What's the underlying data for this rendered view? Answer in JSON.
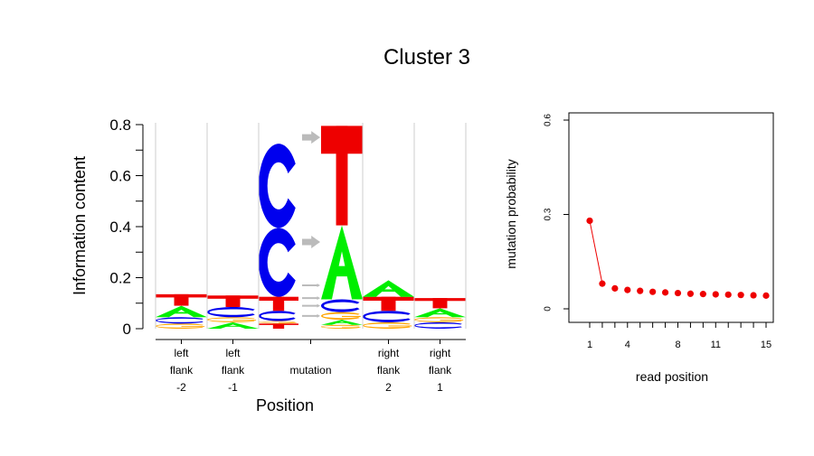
{
  "title": "Cluster 3",
  "colors": {
    "A": "#00ee00",
    "C": "#0000ee",
    "G": "#ffa500",
    "T": "#ee0000",
    "arrow": "#bbbbbb",
    "point": "#ee0000",
    "separator": "#cccccc"
  },
  "chart_data": [
    {
      "type": "sequence-logo",
      "ylabel": "Information content",
      "xlabel": "Position",
      "ylim": [
        0,
        0.8
      ],
      "yticks": [
        "0",
        "0.1",
        "0.2",
        "0.3",
        "0.4",
        "0.5",
        "0.6",
        "0.7",
        "0.8"
      ],
      "columns": [
        {
          "label": [
            "left",
            "flank",
            "-2"
          ],
          "stack": [
            {
              "base": "G",
              "height": 0.02
            },
            {
              "base": "C",
              "height": 0.025
            },
            {
              "base": "A",
              "height": 0.045
            },
            {
              "base": "T",
              "height": 0.045
            }
          ]
        },
        {
          "label": [
            "left",
            "flank",
            "-1"
          ],
          "stack": [
            {
              "base": "A",
              "height": 0.025
            },
            {
              "base": "G",
              "height": 0.02
            },
            {
              "base": "C",
              "height": 0.04
            },
            {
              "base": "T",
              "height": 0.045
            }
          ]
        },
        {
          "label": [
            "",
            "mutation",
            ""
          ],
          "mutation": true,
          "from": [
            {
              "base": "T",
              "height": 0.02
            },
            {
              "base": "G",
              "height": 0.01
            },
            {
              "base": "C",
              "height": 0.04
            },
            {
              "base": "T",
              "height": 0.055
            },
            {
              "base": "C",
              "height": 0.27
            },
            {
              "base": "C",
              "height": 0.33
            }
          ],
          "to": [
            {
              "base": "G",
              "height": 0.015
            },
            {
              "base": "A",
              "height": 0.02
            },
            {
              "base": "G",
              "height": 0.03
            },
            {
              "base": "C",
              "height": 0.05
            },
            {
              "base": "A",
              "height": 0.29
            },
            {
              "base": "T",
              "height": 0.39
            }
          ]
        },
        {
          "label": [
            "right",
            "flank",
            "2"
          ],
          "stack": [
            {
              "base": "G",
              "height": 0.025
            },
            {
              "base": "C",
              "height": 0.045
            },
            {
              "base": "T",
              "height": 0.055
            },
            {
              "base": "A",
              "height": 0.065
            }
          ]
        },
        {
          "label": [
            "right",
            "flank",
            "1"
          ],
          "stack": [
            {
              "base": "C",
              "height": 0.025
            },
            {
              "base": "G",
              "height": 0.02
            },
            {
              "base": "A",
              "height": 0.035
            },
            {
              "base": "T",
              "height": 0.04
            }
          ]
        }
      ]
    },
    {
      "type": "scatter",
      "xlabel": "read position",
      "ylabel": "mutation probability",
      "xlim": [
        1,
        15
      ],
      "ylim": [
        0,
        0.6
      ],
      "xticks": [
        1,
        4,
        8,
        11,
        15
      ],
      "yticks": [
        "0",
        "0.3",
        "0.6"
      ],
      "x": [
        1,
        2,
        3,
        4,
        5,
        6,
        7,
        8,
        9,
        10,
        11,
        12,
        13,
        14,
        15
      ],
      "y": [
        0.28,
        0.08,
        0.065,
        0.06,
        0.057,
        0.054,
        0.052,
        0.05,
        0.048,
        0.047,
        0.046,
        0.045,
        0.044,
        0.043,
        0.042
      ]
    }
  ]
}
